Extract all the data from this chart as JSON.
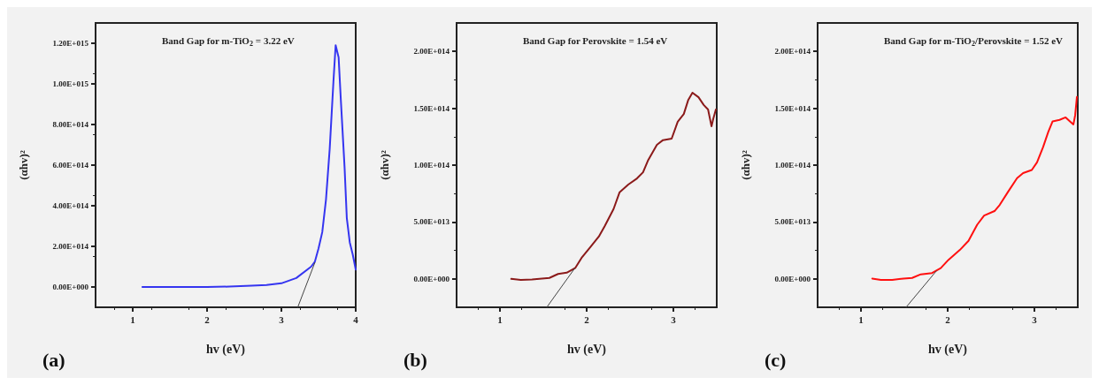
{
  "chart_data": [
    {
      "type": "line",
      "annotations": [
        "Band Gap for m-TiO$_{2}$ = 3.22 eV",
        "(a)"
      ],
      "xlabel": "hv (eV)",
      "ylabel": "(αhv)²",
      "xlim": [
        0.5,
        4
      ],
      "xticks": [
        1,
        2,
        3,
        4
      ],
      "ylim": [
        -100000000000000.0,
        1300000000000000.0
      ],
      "yticks": [
        {
          "value": 0,
          "label": "0.00E+000"
        },
        {
          "value": 200000000000000.0,
          "label": "2.00E+014"
        },
        {
          "value": 400000000000000.0,
          "label": "4.00E+014"
        },
        {
          "value": 600000000000000.0,
          "label": "6.00E+014"
        },
        {
          "value": 800000000000000.0,
          "label": "8.00E+014"
        },
        {
          "value": 1000000000000000.0,
          "label": "1.00E+015"
        },
        {
          "value": 1200000000000000.0,
          "label": "1.20E+015"
        }
      ],
      "grid": false,
      "marker": "none",
      "line_style": "solid",
      "series": [
        {
          "type": "line",
          "color": "#3535f0",
          "x": [
            1.13,
            1.5,
            2.0,
            2.3,
            2.6,
            2.8,
            3.0,
            3.2,
            3.4,
            3.45,
            3.5,
            3.55,
            3.6,
            3.65,
            3.7,
            3.73,
            3.77,
            3.8,
            3.85,
            3.88,
            3.92,
            3.96,
            4.0
          ],
          "values": [
            0,
            0,
            0,
            2000000000000.0,
            6000000000000.0,
            10000000000000.0,
            18000000000000.0,
            44000000000000.0,
            100000000000000.0,
            124000000000000.0,
            190000000000000.0,
            270000000000000.0,
            430000000000000.0,
            680000000000000.0,
            1010000000000000.0,
            1190000000000000.0,
            1130000000000000.0,
            920000000000000.0,
            590000000000000.0,
            340000000000000.0,
            220000000000000.0,
            160000000000000.0,
            86000000000000.0
          ]
        },
        {
          "type": "line",
          "color": "#444444",
          "x": [
            3.45,
            3.22
          ],
          "values": [
            120000000000000.0,
            -100000000000000.0
          ]
        }
      ]
    },
    {
      "type": "line",
      "annotations": [
        "Band Gap for Perovskite = 1.54 eV",
        "(b)"
      ],
      "xlabel": "hv (eV)",
      "ylabel": "(αhv)²",
      "xlim": [
        0.5,
        3.5
      ],
      "xticks": [
        1,
        2,
        3
      ],
      "ylim": [
        -25000000000000.0,
        225000000000000.0
      ],
      "yticks": [
        {
          "value": 0,
          "label": "0.00E+000"
        },
        {
          "value": 50000000000000.0,
          "label": "5.00E+013"
        },
        {
          "value": 100000000000000.0,
          "label": "1.00E+014"
        },
        {
          "value": 150000000000000.0,
          "label": "1.50E+014"
        },
        {
          "value": 200000000000000.0,
          "label": "2.00E+014"
        }
      ],
      "grid": false,
      "marker": "none",
      "line_style": "solid",
      "series": [
        {
          "type": "line",
          "color": "#8b1a1a",
          "x": [
            1.13,
            1.24,
            1.37,
            1.57,
            1.67,
            1.77,
            1.87,
            1.94,
            2.04,
            2.14,
            2.21,
            2.31,
            2.38,
            2.48,
            2.58,
            2.65,
            2.71,
            2.81,
            2.88,
            2.98,
            3.05,
            3.12,
            3.17,
            3.22,
            3.29,
            3.35,
            3.4,
            3.44,
            3.46,
            3.49
          ],
          "values": [
            0,
            -1000000000000.0,
            -500000000000.0,
            800000000000.0,
            4300000000000.0,
            5400000000000.0,
            9700000000000.0,
            18300000000000.0,
            27700000000000.0,
            37200000000000.0,
            46600000000000.0,
            61400000000000.0,
            76200000000000.0,
            82900000000000.0,
            88300000000000.0,
            93700000000000.0,
            104500000000000.0,
            117900000000000.0,
            122000000000000.0,
            123300000000000.0,
            138100000000000.0,
            144900000000000.0,
            157000000000000.0,
            163700000000000.0,
            159700000000000.0,
            152900000000000.0,
            148900000000000.0,
            134100000000000.0,
            140800000000000.0,
            148900000000000.0
          ]
        },
        {
          "type": "line",
          "color": "#444444",
          "x": [
            1.86,
            1.54
          ],
          "values": [
            9000000000000.0,
            -25000000000000.0
          ]
        }
      ]
    },
    {
      "type": "line",
      "annotations": [
        "Band Gap for m-TiO$_{2}$/Perovskite = 1.52 eV",
        "(c)"
      ],
      "xlabel": "hv (eV)",
      "ylabel": "(αhv)²",
      "xlim": [
        0.5,
        3.5
      ],
      "xticks": [
        1,
        2,
        3
      ],
      "ylim": [
        -25000000000000.0,
        225000000000000.0
      ],
      "yticks": [
        {
          "value": 0,
          "label": "0.00E+000"
        },
        {
          "value": 50000000000000.0,
          "label": "5.00E+013"
        },
        {
          "value": 100000000000000.0,
          "label": "1.00E+014"
        },
        {
          "value": 150000000000000.0,
          "label": "1.50E+014"
        },
        {
          "value": 200000000000000.0,
          "label": "2.00E+014"
        }
      ],
      "grid": false,
      "marker": "none",
      "line_style": "solid",
      "series": [
        {
          "type": "line",
          "color": "#ff1010",
          "x": [
            1.13,
            1.23,
            1.36,
            1.49,
            1.59,
            1.69,
            1.82,
            1.92,
            2.01,
            2.14,
            2.24,
            2.34,
            2.42,
            2.54,
            2.6,
            2.7,
            2.8,
            2.87,
            2.97,
            3.03,
            3.1,
            3.16,
            3.21,
            3.29,
            3.36,
            3.41,
            3.45,
            3.47,
            3.49
          ],
          "values": [
            300000000000.0,
            -1000000000000.0,
            -1000000000000.0,
            300000000000.0,
            800000000000.0,
            4000000000000.0,
            5100000000000.0,
            9400000000000.0,
            16800000000000.0,
            25400000000000.0,
            33400000000000.0,
            47600000000000.0,
            55600000000000.0,
            59600000000000.0,
            65000000000000.0,
            77000000000000.0,
            88500000000000.0,
            93000000000000.0,
            95700000000000.0,
            102400000000000.0,
            115800000000000.0,
            129200000000000.0,
            138500000000000.0,
            139800000000000.0,
            142000000000000.0,
            138500000000000.0,
            135800000000000.0,
            143900000000000.0,
            159900000000000.0
          ]
        },
        {
          "type": "line",
          "color": "#444444",
          "x": [
            1.87,
            1.52
          ],
          "values": [
            7000000000000.0,
            -25000000000000.0
          ]
        }
      ]
    }
  ]
}
